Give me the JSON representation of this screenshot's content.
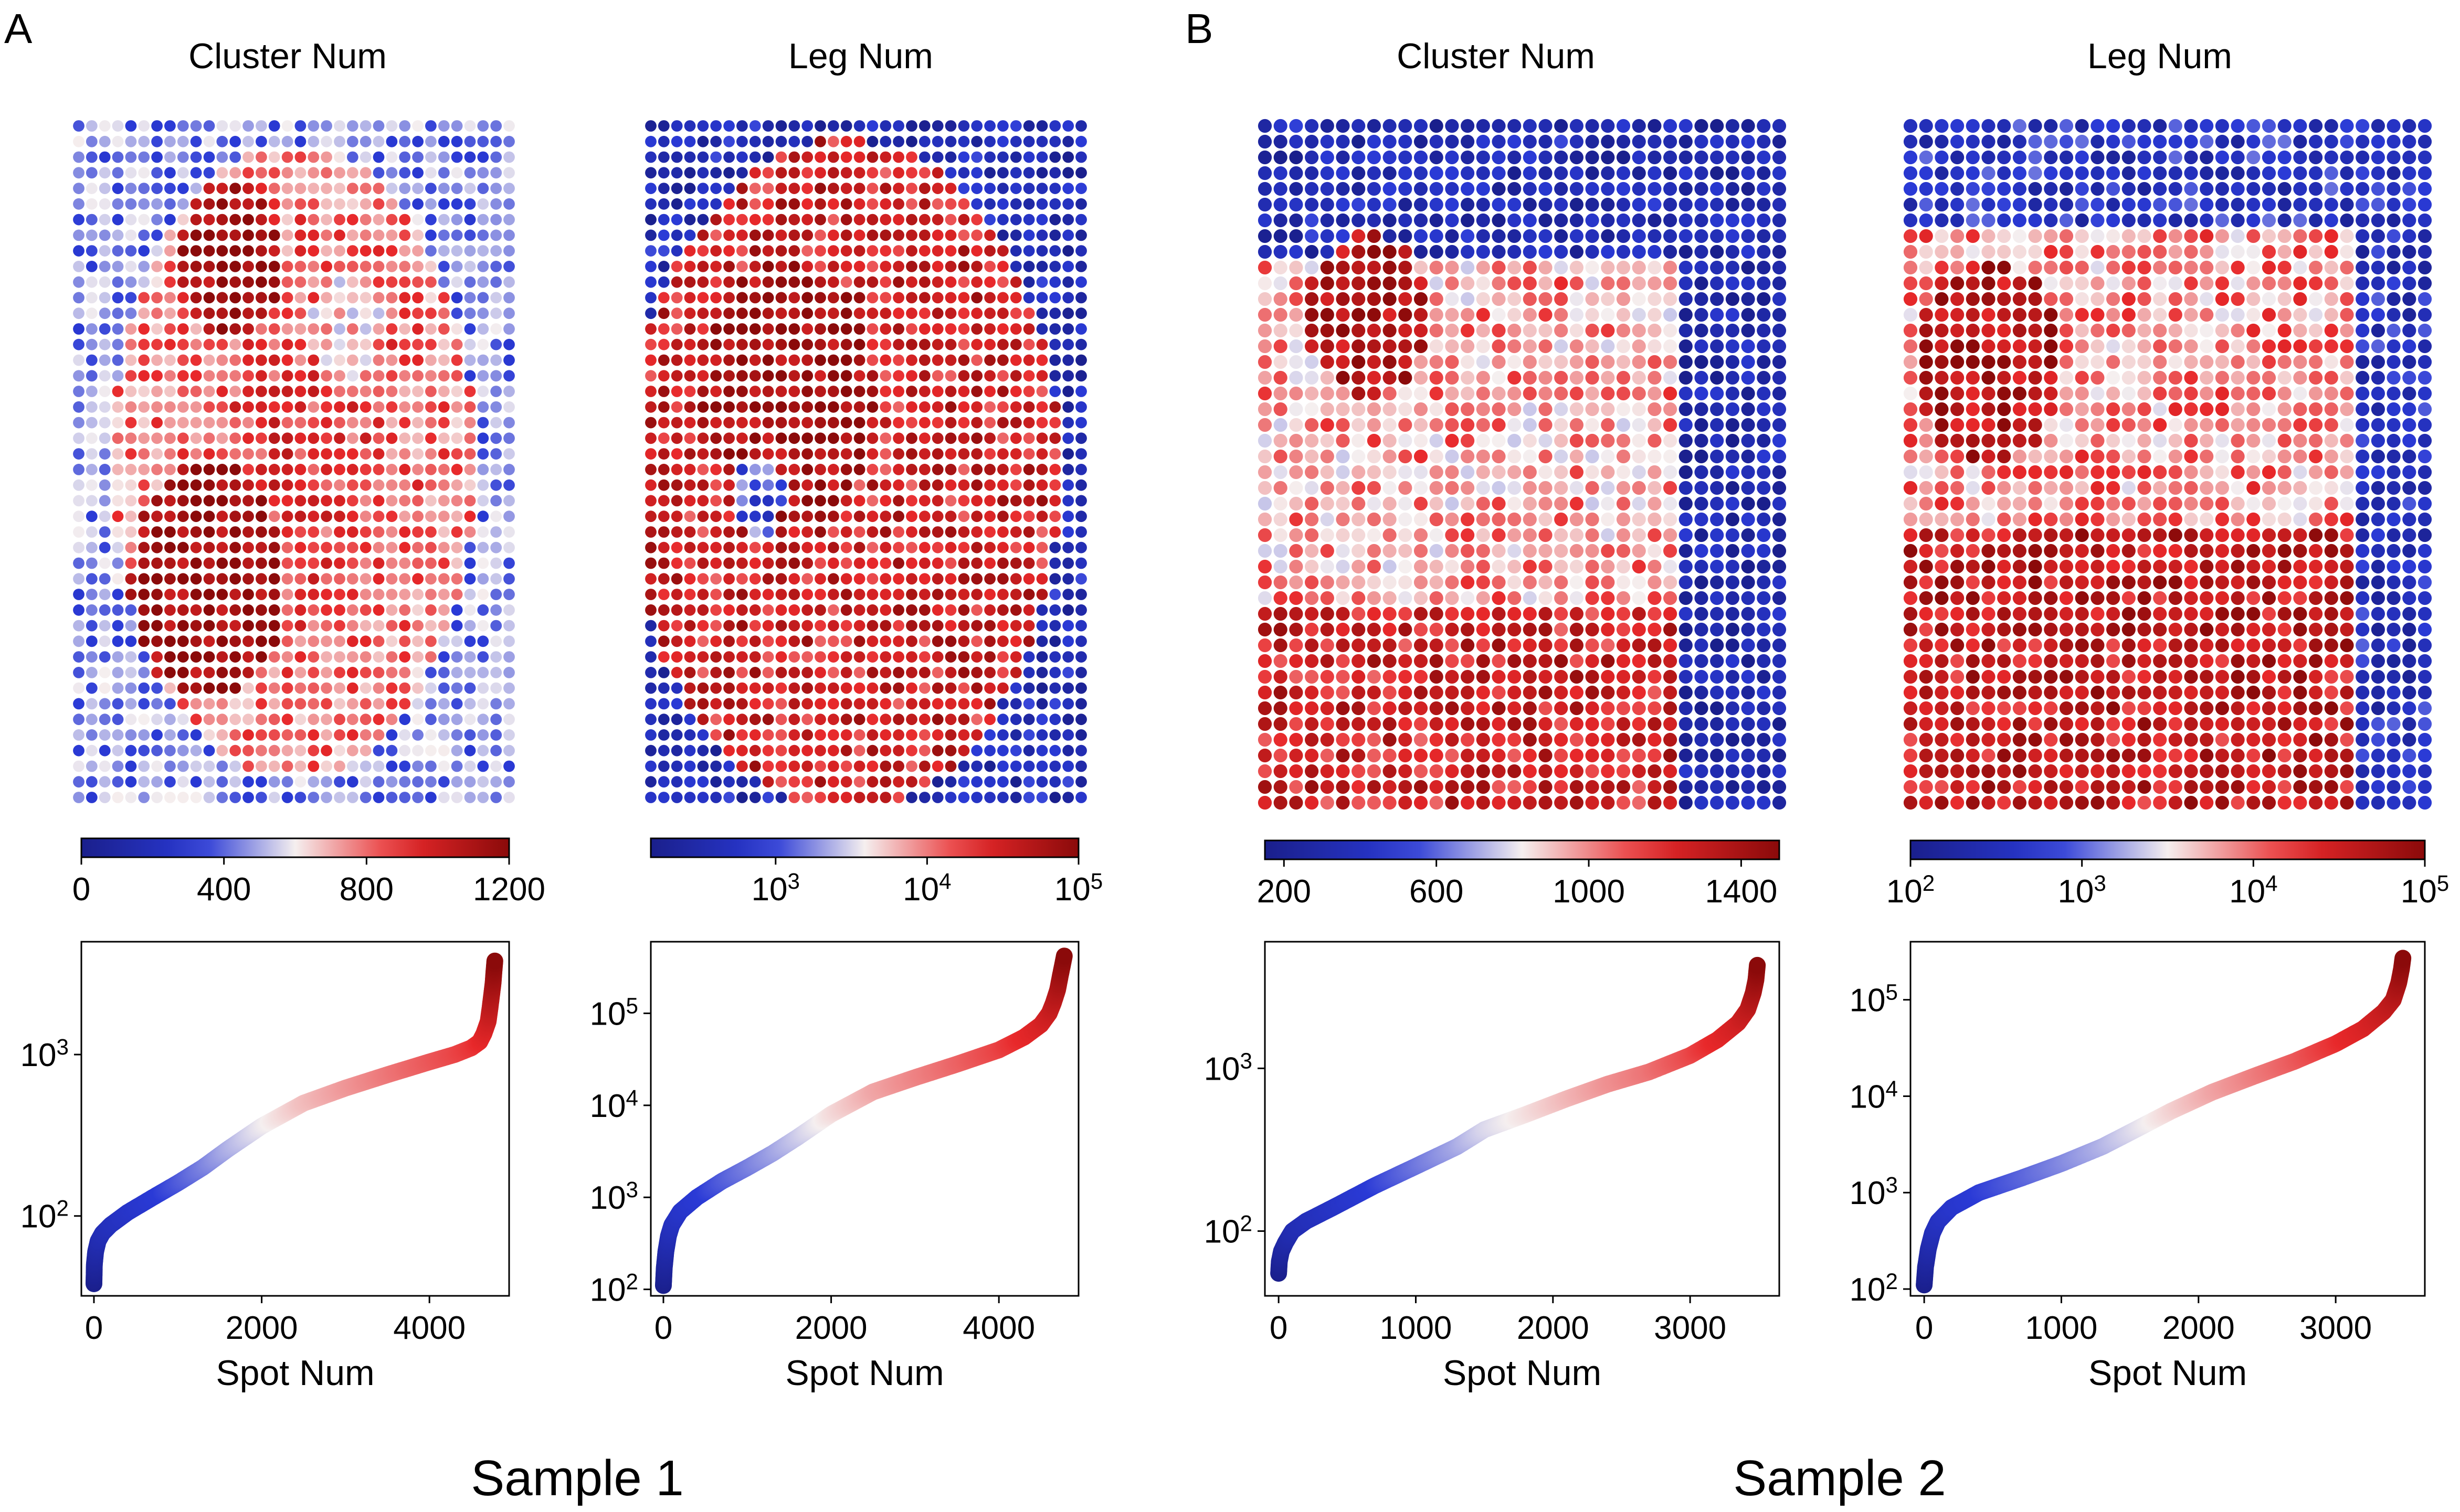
{
  "panels": [
    {
      "letter": "A",
      "sample_label": "Sample 1"
    },
    {
      "letter": "B",
      "sample_label": "Sample 2"
    }
  ],
  "colors": {
    "low": "#1a1f8c",
    "mid_low": "#2a3ad6",
    "mid": "#f5efef",
    "mid_high": "#e8282a",
    "high": "#8b0a0a"
  },
  "chart_data": [
    {
      "type": "heatmap",
      "panel": "A",
      "title": "Cluster Num",
      "grid": {
        "cols": 34,
        "rows": 44
      },
      "colorbar": {
        "scale": "linear",
        "ticks": [
          "0",
          "400",
          "800",
          "1200"
        ],
        "range": [
          0,
          1200
        ]
      }
    },
    {
      "type": "heatmap",
      "panel": "A",
      "title": "Leg Num",
      "grid": {
        "cols": 34,
        "rows": 44
      },
      "colorbar": {
        "scale": "log",
        "ticks": [
          "10^3",
          "10^4",
          "10^5"
        ],
        "range": [
          150,
          100000
        ]
      }
    },
    {
      "type": "heatmap",
      "panel": "B",
      "title": "Cluster Num",
      "grid": {
        "cols": 34,
        "rows": 44
      },
      "colorbar": {
        "scale": "linear",
        "ticks": [
          "200",
          "600",
          "1000",
          "1400"
        ],
        "range": [
          150,
          1500
        ]
      }
    },
    {
      "type": "heatmap",
      "panel": "B",
      "title": "Leg Num",
      "grid": {
        "cols": 34,
        "rows": 44
      },
      "colorbar": {
        "scale": "log",
        "ticks": [
          "10^2",
          "10^3",
          "10^4",
          "10^5"
        ],
        "range": [
          100,
          100000
        ]
      }
    },
    {
      "type": "scatter",
      "panel": "A",
      "xlabel": "Spot Num",
      "ylabel": "",
      "xlim": [
        -150,
        4950
      ],
      "xticks": [
        0,
        2000,
        4000
      ],
      "yscale": "log",
      "ylim": [
        32,
        5000
      ],
      "yticks": [
        "10^2",
        "10^3"
      ],
      "x": [
        0,
        5,
        20,
        50,
        100,
        200,
        400,
        700,
        1000,
        1300,
        1600,
        2000,
        2500,
        3000,
        3500,
        4000,
        4300,
        4500,
        4600,
        4650,
        4700,
        4720,
        4740,
        4760,
        4770,
        4780
      ],
      "y": [
        38,
        50,
        60,
        70,
        78,
        88,
        105,
        130,
        160,
        200,
        260,
        360,
        500,
        620,
        750,
        900,
        1000,
        1100,
        1200,
        1350,
        1600,
        1900,
        2300,
        2800,
        3300,
        3800
      ],
      "color_by_y": true
    },
    {
      "type": "scatter",
      "panel": "A",
      "xlabel": "Spot Num",
      "ylabel": "",
      "xlim": [
        -150,
        4950
      ],
      "xticks": [
        0,
        2000,
        4000
      ],
      "yscale": "log",
      "ylim": [
        85,
        600000
      ],
      "yticks": [
        "10^2",
        "10^3",
        "10^4",
        "10^5"
      ],
      "x": [
        0,
        10,
        30,
        60,
        100,
        200,
        400,
        700,
        1000,
        1300,
        1600,
        2000,
        2500,
        3000,
        3500,
        4000,
        4300,
        4500,
        4600,
        4650,
        4700,
        4730,
        4760,
        4780
      ],
      "y": [
        110,
        170,
        260,
        380,
        500,
        700,
        1000,
        1500,
        2100,
        3000,
        4500,
        8000,
        14000,
        20000,
        28000,
        40000,
        55000,
        75000,
        100000,
        130000,
        180000,
        250000,
        340000,
        420000
      ],
      "color_by_y": true
    },
    {
      "type": "scatter",
      "panel": "B",
      "xlabel": "Spot Num",
      "ylabel": "",
      "xlim": [
        -100,
        3650
      ],
      "xticks": [
        0,
        1000,
        2000,
        3000
      ],
      "yscale": "log",
      "ylim": [
        40,
        6000
      ],
      "yticks": [
        "10^2",
        "10^3"
      ],
      "x": [
        0,
        5,
        20,
        50,
        100,
        200,
        400,
        700,
        1000,
        1300,
        1500,
        1800,
        2100,
        2400,
        2700,
        3000,
        3200,
        3350,
        3420,
        3460,
        3480,
        3490
      ],
      "y": [
        55,
        65,
        75,
        85,
        100,
        115,
        140,
        190,
        250,
        330,
        420,
        520,
        650,
        800,
        950,
        1200,
        1500,
        1900,
        2300,
        2900,
        3500,
        4300
      ],
      "color_by_y": true
    },
    {
      "type": "scatter",
      "panel": "B",
      "xlabel": "Spot Num",
      "ylabel": "",
      "xlim": [
        -100,
        3650
      ],
      "xticks": [
        0,
        1000,
        2000,
        3000
      ],
      "yscale": "log",
      "ylim": [
        85,
        400000
      ],
      "yticks": [
        "10^2",
        "10^3",
        "10^4",
        "10^5"
      ],
      "x": [
        0,
        10,
        30,
        60,
        100,
        200,
        400,
        700,
        1000,
        1300,
        1500,
        1800,
        2100,
        2400,
        2700,
        3000,
        3200,
        3350,
        3420,
        3460,
        3480,
        3490
      ],
      "y": [
        110,
        170,
        260,
        380,
        500,
        700,
        1000,
        1400,
        2000,
        3000,
        4200,
        7000,
        11000,
        16000,
        23000,
        35000,
        50000,
        75000,
        100000,
        150000,
        210000,
        270000
      ],
      "color_by_y": true
    }
  ]
}
